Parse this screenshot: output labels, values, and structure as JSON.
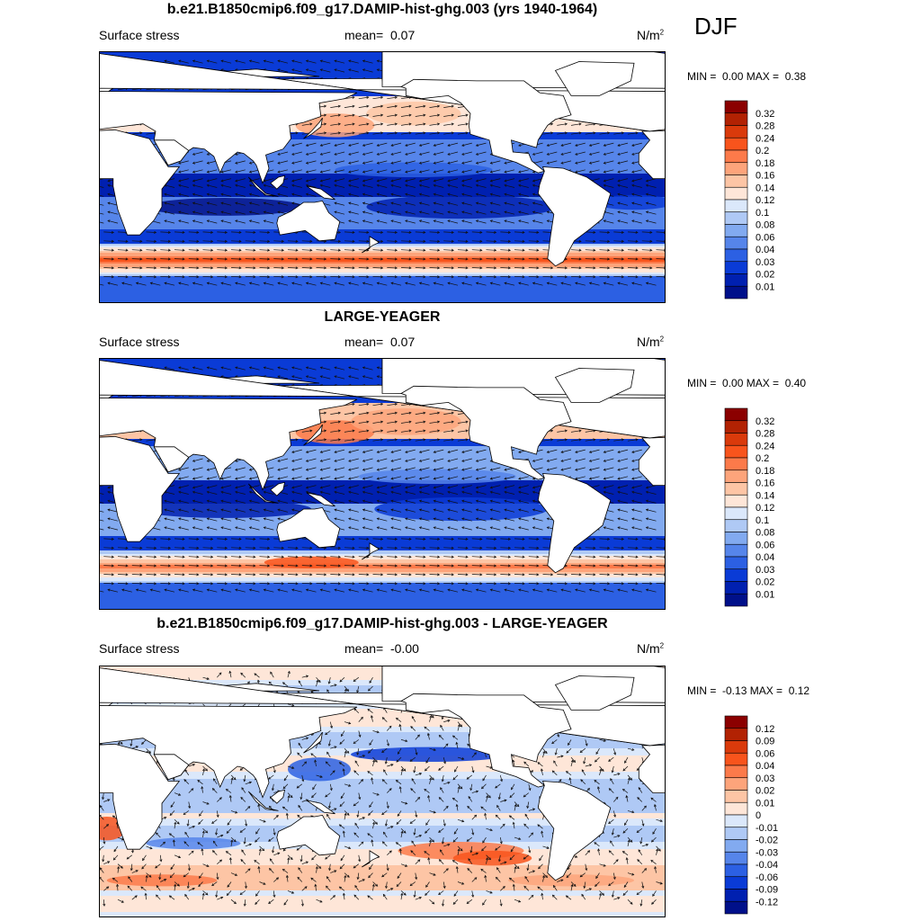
{
  "page": {
    "season": "DJF"
  },
  "chart_data": [
    {
      "type": "heatmap",
      "title": "b.e21.B1850cmip6.f09_g17.DAMIP-hist-ghg.003 (yrs 1940-1964)",
      "variable": "Surface stress",
      "mean_label": "mean=",
      "mean_value": "0.07",
      "units_base": "N/m",
      "units_exp": "2",
      "min_label": "MIN =",
      "min_value": "0.00",
      "max_label": "MAX =",
      "max_value": "0.38",
      "colorbar": {
        "labels": [
          "0.32",
          "0.28",
          "0.24",
          "0.2",
          "0.18",
          "0.16",
          "0.14",
          "0.12",
          "0.1",
          "0.08",
          "0.06",
          "0.04",
          "0.03",
          "0.02",
          "0.01"
        ],
        "colors": [
          "#8b0000",
          "#b22203",
          "#da3a0b",
          "#f8541c",
          "#fc7a4a",
          "#fda47b",
          "#fdc5a5",
          "#fee6d8",
          "#dbe8fb",
          "#afc9f5",
          "#82aaf0",
          "#5685ea",
          "#2c60e3",
          "#0a3bd6",
          "#0020b0",
          "#00108a"
        ]
      },
      "xlim": [
        0,
        360
      ],
      "ylim": [
        -80,
        90
      ]
    },
    {
      "type": "heatmap",
      "title": "LARGE-YEAGER",
      "variable": "Surface stress",
      "mean_label": "mean=",
      "mean_value": "0.07",
      "units_base": "N/m",
      "units_exp": "2",
      "min_label": "MIN =",
      "min_value": "0.00",
      "max_label": "MAX =",
      "max_value": "0.40",
      "colorbar": {
        "labels": [
          "0.32",
          "0.28",
          "0.24",
          "0.2",
          "0.18",
          "0.16",
          "0.14",
          "0.12",
          "0.1",
          "0.08",
          "0.06",
          "0.04",
          "0.03",
          "0.02",
          "0.01"
        ],
        "colors": [
          "#8b0000",
          "#b22203",
          "#da3a0b",
          "#f8541c",
          "#fc7a4a",
          "#fda47b",
          "#fdc5a5",
          "#fee6d8",
          "#dbe8fb",
          "#afc9f5",
          "#82aaf0",
          "#5685ea",
          "#2c60e3",
          "#0a3bd6",
          "#0020b0",
          "#00108a"
        ]
      },
      "xlim": [
        0,
        360
      ],
      "ylim": [
        -80,
        90
      ]
    },
    {
      "type": "heatmap",
      "title": "b.e21.B1850cmip6.f09_g17.DAMIP-hist-ghg.003 - LARGE-YEAGER",
      "variable": "Surface stress",
      "mean_label": "mean=",
      "mean_value": "-0.00",
      "units_base": "N/m",
      "units_exp": "2",
      "min_label": "MIN =",
      "min_value": "-0.13",
      "max_label": "MAX =",
      "max_value": "0.12",
      "colorbar": {
        "labels": [
          "0.12",
          "0.09",
          "0.06",
          "0.04",
          "0.03",
          "0.02",
          "0.01",
          "0",
          "-0.01",
          "-0.02",
          "-0.03",
          "-0.04",
          "-0.06",
          "-0.09",
          "-0.12"
        ],
        "colors": [
          "#8b0000",
          "#b22203",
          "#da3a0b",
          "#f8541c",
          "#fc7a4a",
          "#fda47b",
          "#fdc5a5",
          "#fee6d8",
          "#dbe8fb",
          "#afc9f5",
          "#82aaf0",
          "#5685ea",
          "#2c60e3",
          "#0a3bd6",
          "#0020b0",
          "#00108a"
        ]
      },
      "xlim": [
        0,
        360
      ],
      "ylim": [
        -80,
        90
      ]
    }
  ]
}
